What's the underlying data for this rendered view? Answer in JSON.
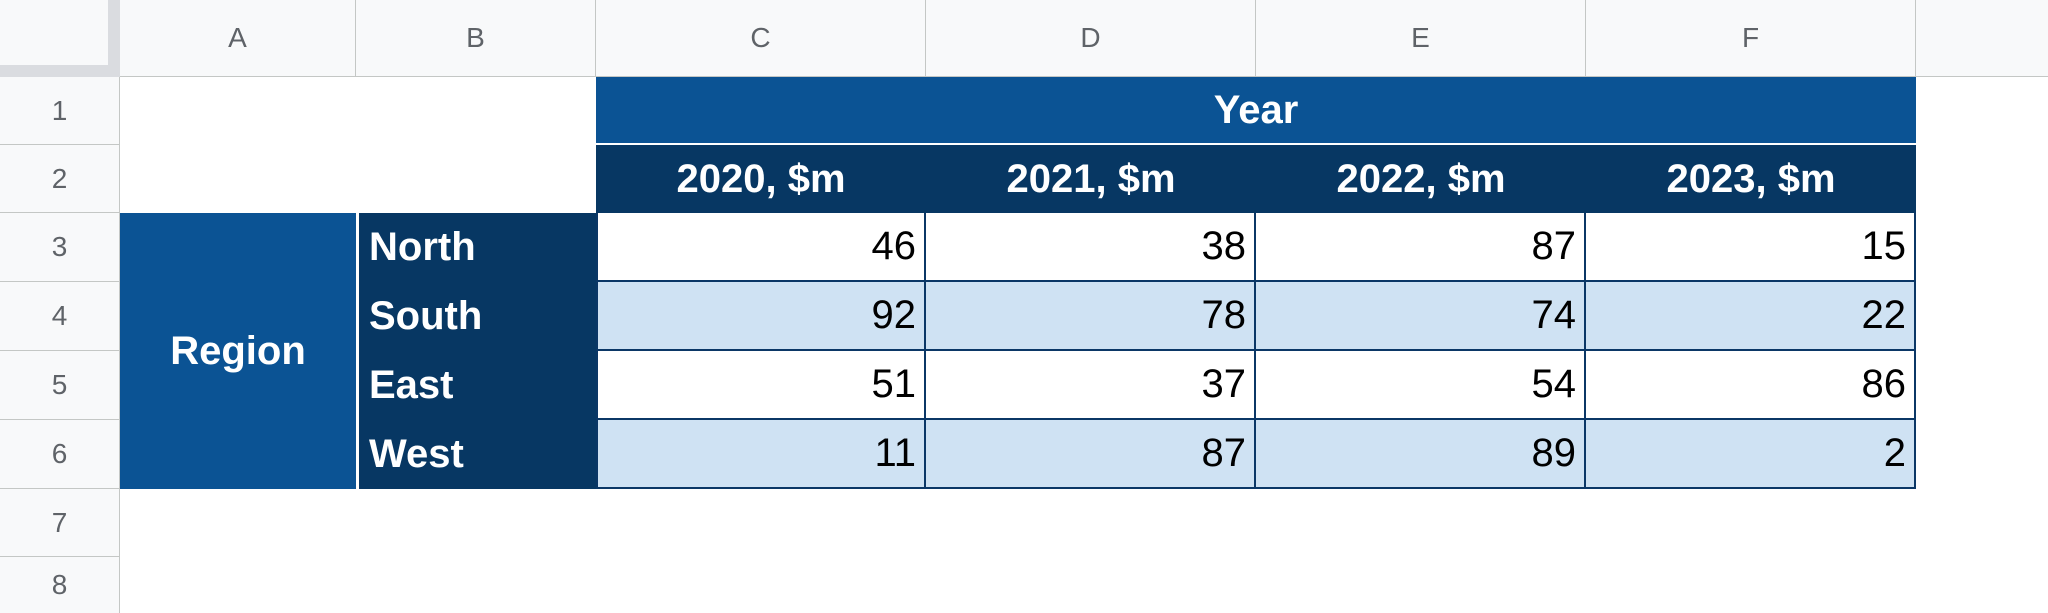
{
  "columns": [
    "A",
    "B",
    "C",
    "D",
    "E",
    "F"
  ],
  "rows": [
    "1",
    "2",
    "3",
    "4",
    "5",
    "6",
    "7",
    "8"
  ],
  "table": {
    "year_header": "Year",
    "year_columns": [
      "2020, $m",
      "2021, $m",
      "2022, $m",
      "2023, $m"
    ],
    "region_header": "Region",
    "regions": [
      {
        "name": "North",
        "values": [
          "46",
          "38",
          "87",
          "15"
        ]
      },
      {
        "name": "South",
        "values": [
          "92",
          "78",
          "74",
          "22"
        ]
      },
      {
        "name": "East",
        "values": [
          "51",
          "37",
          "54",
          "86"
        ]
      },
      {
        "name": "West",
        "values": [
          "11",
          "87",
          "89",
          "2"
        ]
      }
    ]
  },
  "colors": {
    "header_bg": "#f8f9fa",
    "year_header_bg": "#0b5394",
    "year_col_bg": "#073763",
    "region_bg": "#0b5394",
    "region_name_bg": "#073763",
    "row_shade": "#cfe2f3",
    "border": "#0b3766"
  }
}
